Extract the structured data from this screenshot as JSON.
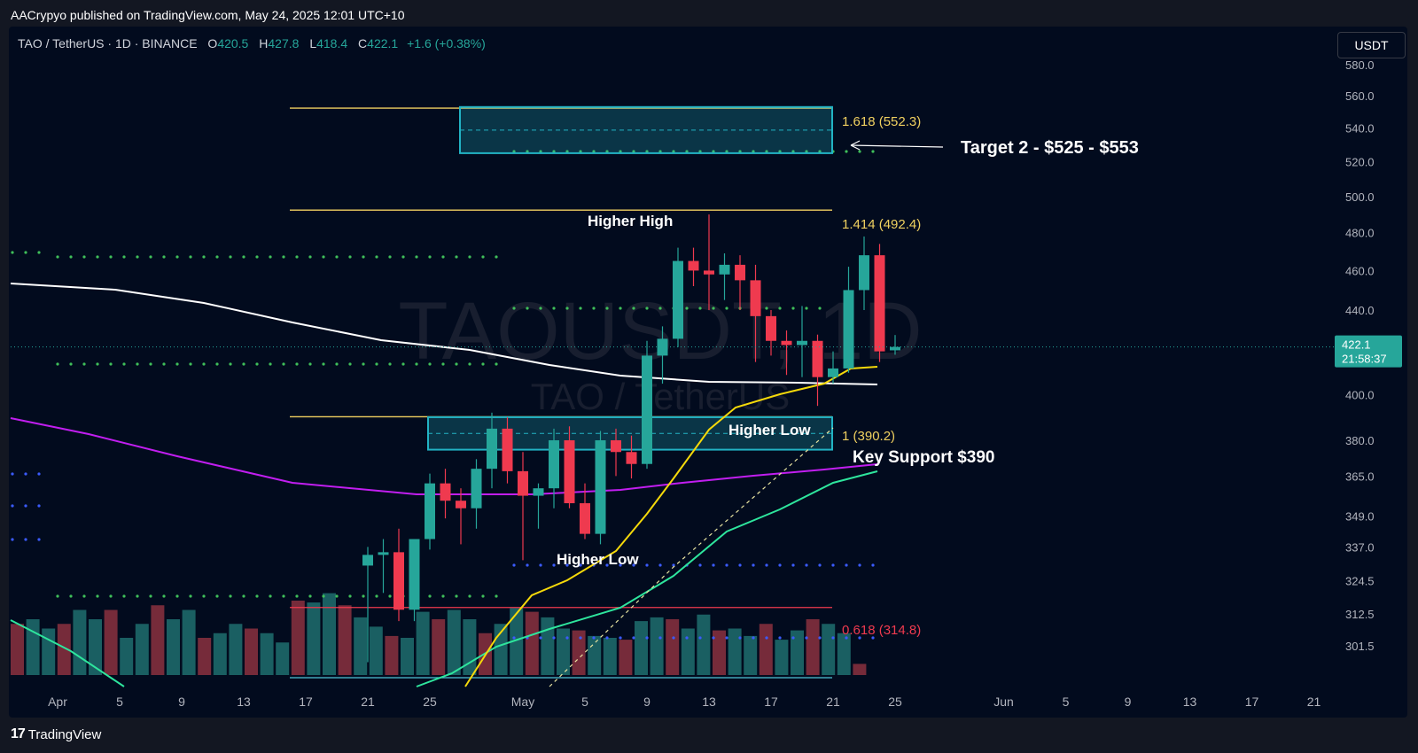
{
  "header": {
    "publisher_line": "AACrypyo published on TradingView.com, May 24, 2025 12:01 UTC+10"
  },
  "legend": {
    "symbol": "TAO / TetherUS · 1D · BINANCE",
    "open_label": "O",
    "open": "420.5",
    "high_label": "H",
    "high": "427.8",
    "low_label": "L",
    "low": "418.4",
    "close_label": "C",
    "close": "422.1",
    "change": "+1.6 (+0.38%)"
  },
  "currency_button": "USDT",
  "footer": {
    "brand": "TradingView"
  },
  "colors": {
    "background": "#020b1e",
    "up": "#26a69a",
    "down": "#ef3a4f",
    "volume_up": "#1e6e6e",
    "volume_down": "#8b3140",
    "ema_yellow": "#f5d90a",
    "ema_green": "#2ee59d",
    "ema_magenta": "#c11ef0",
    "ema_white": "#ffffff",
    "fib_line": "#f0d060",
    "zone": "#22b3c4",
    "price_tag": "#26a69a"
  },
  "watermark": {
    "main": "TAOUSDT, 1D",
    "sub": "TAO / TetherUS"
  },
  "chart_data": {
    "type": "candlestick",
    "price_axis": {
      "ticks": [
        "580.0",
        "560.0",
        "540.0",
        "520.0",
        "500.0",
        "480.0",
        "460.0",
        "440.0",
        "400.0",
        "380.0",
        "365.0",
        "349.0",
        "337.0",
        "324.5",
        "312.5",
        "301.5"
      ],
      "tick_values": [
        580,
        560,
        540,
        520,
        500,
        480,
        460,
        440,
        400,
        380,
        365,
        349,
        337,
        324.5,
        312.5,
        301.5
      ],
      "scale": "log"
    },
    "time_axis": {
      "labels": [
        "Apr",
        "5",
        "9",
        "13",
        "17",
        "21",
        "25",
        "May",
        "5",
        "9",
        "13",
        "17",
        "21",
        "25",
        "Jun",
        "5",
        "9",
        "13",
        "17",
        "21"
      ],
      "label_days": [
        1,
        5,
        9,
        13,
        17,
        21,
        25,
        31,
        35,
        39,
        43,
        47,
        51,
        55,
        62,
        66,
        70,
        74,
        78,
        82
      ]
    },
    "last_price": {
      "value": "422.1",
      "countdown": "21:58:37"
    },
    "candles": [
      {
        "d": 21,
        "o": 330,
        "h": 337,
        "l": 296,
        "c": 334
      },
      {
        "d": 22,
        "o": 334,
        "h": 340,
        "l": 320,
        "c": 335
      },
      {
        "d": 23,
        "o": 335,
        "h": 344,
        "l": 310,
        "c": 314
      },
      {
        "d": 24,
        "o": 314,
        "h": 340,
        "l": 310,
        "c": 340
      },
      {
        "d": 25,
        "o": 340,
        "h": 366,
        "l": 336,
        "c": 362
      },
      {
        "d": 26,
        "o": 362,
        "h": 368,
        "l": 348,
        "c": 355
      },
      {
        "d": 27,
        "o": 355,
        "h": 360,
        "l": 338,
        "c": 352
      },
      {
        "d": 28,
        "o": 352,
        "h": 372,
        "l": 344,
        "c": 368
      },
      {
        "d": 29,
        "o": 368,
        "h": 392,
        "l": 360,
        "c": 385
      },
      {
        "d": 30,
        "o": 385,
        "h": 390,
        "l": 362,
        "c": 367
      },
      {
        "d": 31,
        "o": 367,
        "h": 375,
        "l": 332,
        "c": 357
      },
      {
        "d": 32,
        "o": 357,
        "h": 362,
        "l": 344,
        "c": 360
      },
      {
        "d": 33,
        "o": 360,
        "h": 385,
        "l": 352,
        "c": 380
      },
      {
        "d": 34,
        "o": 380,
        "h": 386,
        "l": 352,
        "c": 354
      },
      {
        "d": 35,
        "o": 354,
        "h": 362,
        "l": 340,
        "c": 342
      },
      {
        "d": 36,
        "o": 342,
        "h": 384,
        "l": 338,
        "c": 380
      },
      {
        "d": 37,
        "o": 380,
        "h": 385,
        "l": 365,
        "c": 375
      },
      {
        "d": 38,
        "o": 375,
        "h": 382,
        "l": 364,
        "c": 370
      },
      {
        "d": 39,
        "o": 370,
        "h": 425,
        "l": 368,
        "c": 418
      },
      {
        "d": 40,
        "o": 418,
        "h": 432,
        "l": 405,
        "c": 426
      },
      {
        "d": 41,
        "o": 426,
        "h": 472,
        "l": 422,
        "c": 465
      },
      {
        "d": 42,
        "o": 465,
        "h": 472,
        "l": 452,
        "c": 460
      },
      {
        "d": 43,
        "o": 460,
        "h": 490,
        "l": 440,
        "c": 458
      },
      {
        "d": 44,
        "o": 458,
        "h": 469,
        "l": 445,
        "c": 463
      },
      {
        "d": 45,
        "o": 463,
        "h": 468,
        "l": 440,
        "c": 455
      },
      {
        "d": 46,
        "o": 455,
        "h": 463,
        "l": 415,
        "c": 437
      },
      {
        "d": 47,
        "o": 437,
        "h": 440,
        "l": 418,
        "c": 425
      },
      {
        "d": 48,
        "o": 425,
        "h": 430,
        "l": 409,
        "c": 423
      },
      {
        "d": 49,
        "o": 423,
        "h": 442,
        "l": 408,
        "c": 425
      },
      {
        "d": 50,
        "o": 425,
        "h": 428,
        "l": 395,
        "c": 408
      },
      {
        "d": 51,
        "o": 408,
        "h": 420,
        "l": 405,
        "c": 412
      },
      {
        "d": 52,
        "o": 412,
        "h": 462,
        "l": 410,
        "c": 450
      },
      {
        "d": 53,
        "o": 450,
        "h": 478,
        "l": 440,
        "c": 468
      },
      {
        "d": 54,
        "o": 468,
        "h": 474,
        "l": 415,
        "c": 420
      },
      {
        "d": 55,
        "o": 420.5,
        "h": 427.8,
        "l": 418.4,
        "c": 422.1
      }
    ],
    "annotations": [
      {
        "text": "Target 2 - $525 - $553"
      },
      {
        "text": "Higher High"
      },
      {
        "text": "Higher Low"
      },
      {
        "text": "Higher Low"
      },
      {
        "text": "Key Support $390"
      }
    ],
    "fib_levels": [
      {
        "label": "1.618 (552.3)",
        "value": 552.3
      },
      {
        "label": "1.414 (492.4)",
        "value": 492.4
      },
      {
        "label": "1 (390.2)",
        "value": 390.2
      },
      {
        "label": "0.618 (314.8)",
        "value": 314.8
      }
    ],
    "zones": [
      {
        "from": 525,
        "to": 553
      },
      {
        "from": 376,
        "to": 390
      }
    ],
    "grid": false
  }
}
